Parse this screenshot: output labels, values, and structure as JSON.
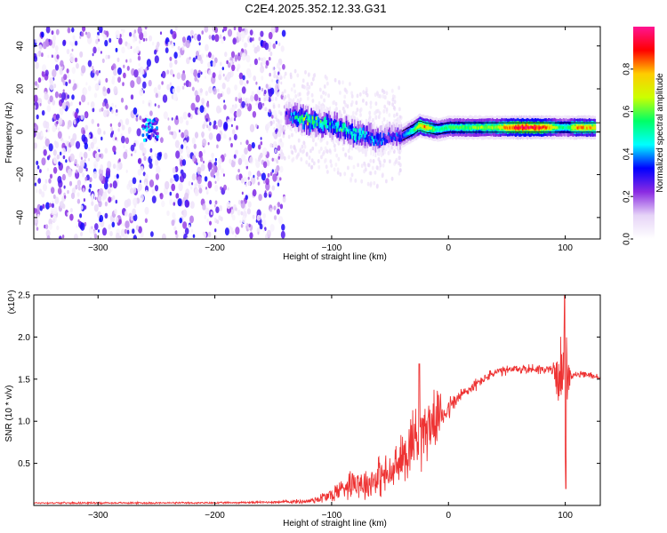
{
  "title": "C2E4.2025.352.12.33.G31",
  "chart_data": [
    {
      "type": "heatmap",
      "xlabel": "Height of straight line (km)",
      "ylabel": "Frequency (Hz)",
      "xlim": [
        -355,
        130
      ],
      "ylim": [
        -50,
        49
      ],
      "xticks": [
        -300,
        -200,
        -100,
        0,
        100
      ],
      "yticks": [
        -40,
        -20,
        0,
        20,
        40
      ],
      "colorbar": {
        "label": "Normalized spectral amplitude",
        "range": [
          0,
          1
        ],
        "ticks": [
          "0.0",
          "0.2",
          "0.4",
          "0.6",
          "0.8"
        ],
        "tick_values": [
          0,
          0.2,
          0.4,
          0.6,
          0.8
        ],
        "colors": [
          "#ffffff",
          "#e6d4f7",
          "#8a2be2",
          "#0000ff",
          "#00ffff",
          "#00ff66",
          "#ccff00",
          "#ffcc00",
          "#ff0000",
          "#ff1493"
        ]
      },
      "noise_region_x": [
        -355,
        -140
      ],
      "ridge": {
        "x": [
          -140,
          -130,
          -120,
          -110,
          -100,
          -90,
          -80,
          -70,
          -60,
          -55,
          -50,
          -40,
          -30,
          -25,
          -20,
          -10,
          0,
          20,
          40,
          60,
          80,
          95,
          100,
          110,
          125
        ],
        "y": [
          8,
          7,
          5,
          4,
          3,
          1,
          -1,
          -2,
          -4,
          -3,
          -2,
          -2,
          1,
          3,
          2,
          1,
          2,
          2,
          2,
          2,
          2,
          2,
          2,
          2,
          2
        ],
        "peak_amplitude": [
          0.25,
          0.5,
          0.55,
          0.5,
          0.45,
          0.5,
          0.45,
          0.4,
          0.4,
          0.3,
          0.3,
          0.35,
          0.55,
          0.75,
          0.8,
          0.5,
          0.55,
          0.6,
          0.65,
          0.95,
          0.9,
          0.55,
          0.5,
          0.8,
          0.75
        ]
      }
    },
    {
      "type": "line",
      "xlabel": "Height of straight line (km)",
      "ylabel": "SNR (10 * v/v)",
      "y_multiplier": "(x10⁴)",
      "xlim": [
        -355,
        130
      ],
      "ylim": [
        0,
        2.5
      ],
      "xticks": [
        -300,
        -200,
        -100,
        0,
        100
      ],
      "yticks": [
        0.5,
        1.0,
        1.5,
        2.0,
        2.5
      ],
      "ytick_labels": [
        "0.5",
        "1.0",
        "1.5",
        "2.0",
        "2.5"
      ],
      "color": "#ee3333",
      "series": [
        {
          "x": [
            -355,
            -250,
            -200,
            -150,
            -120,
            -100,
            -90,
            -80,
            -70,
            -60,
            -50,
            -40,
            -30,
            -20,
            -10,
            0,
            10,
            20,
            30,
            40,
            60,
            80,
            90,
            95,
            100,
            105,
            110,
            120,
            130
          ],
          "y": [
            0.03,
            0.03,
            0.03,
            0.04,
            0.05,
            0.12,
            0.22,
            0.3,
            0.25,
            0.35,
            0.35,
            0.55,
            0.8,
            0.9,
            1.05,
            1.15,
            1.3,
            1.4,
            1.5,
            1.58,
            1.62,
            1.62,
            1.6,
            1.55,
            1.5,
            1.55,
            1.55,
            1.55,
            1.52
          ],
          "noise_amplitude": [
            0.01,
            0.01,
            0.01,
            0.015,
            0.03,
            0.1,
            0.15,
            0.2,
            0.2,
            0.25,
            0.25,
            0.3,
            0.45,
            0.4,
            0.3,
            0.15,
            0.1,
            0.08,
            0.06,
            0.06,
            0.06,
            0.06,
            0.1,
            0.35,
            0.8,
            0.05,
            0.04,
            0.04,
            0.04
          ]
        }
      ],
      "annotations": [
        {
          "x": -25,
          "y": 1.68,
          "text": "spike"
        },
        {
          "x": 100,
          "y": 2.5,
          "text": "spike"
        },
        {
          "x": 100,
          "y": 0.2,
          "text": "dip"
        }
      ]
    }
  ]
}
